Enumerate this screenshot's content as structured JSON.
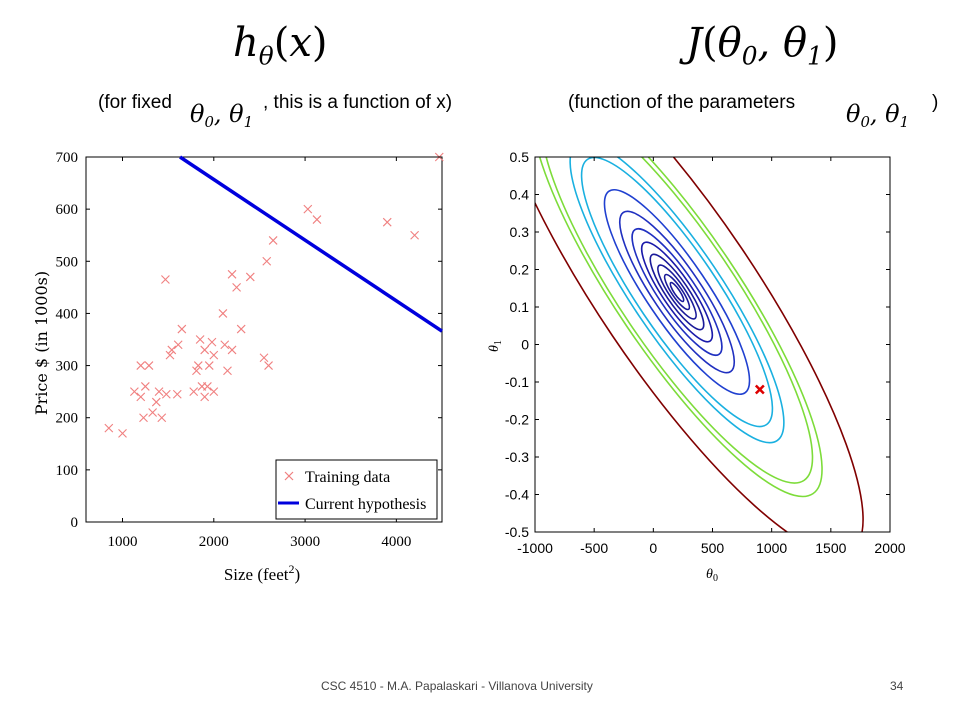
{
  "slide": {
    "left_heading": "h_θ(x)",
    "right_heading": "J(θ_0, θ_1)",
    "left_caption_a": "(for fixed",
    "left_caption_b": ", this is a function of x)",
    "right_caption_a": "(function of the parameters",
    "right_caption_b": ")",
    "params_symbol": "θ_0, θ_1",
    "footer_text": "CSC 4510 - M.A. Papalaskari - Villanova University",
    "page_number": "34"
  },
  "chart_data": [
    {
      "type": "scatter",
      "title": "",
      "xlabel": "Size (feet²)",
      "ylabel": "Price $ (in 1000s)",
      "xlim": [
        600,
        4500
      ],
      "ylim": [
        0,
        700
      ],
      "x_ticks": [
        "1000",
        "2000",
        "3000",
        "4000"
      ],
      "y_ticks": [
        "0",
        "100",
        "200",
        "300",
        "400",
        "500",
        "600",
        "700"
      ],
      "legend_position": "bottom-right",
      "series": [
        {
          "name": "Training data",
          "marker": "x",
          "color": "#f08080",
          "x": [
            850,
            1000,
            1130,
            1200,
            1200,
            1230,
            1250,
            1290,
            1330,
            1370,
            1400,
            1430,
            1470,
            1480,
            1520,
            1540,
            1600,
            1610,
            1650,
            1780,
            1810,
            1830,
            1850,
            1870,
            1900,
            1900,
            1930,
            1950,
            1980,
            2000,
            2000,
            2100,
            2120,
            2150,
            2200,
            2200,
            2250,
            2300,
            2400,
            2550,
            2580,
            2600,
            2650,
            3030,
            3130,
            3900,
            4200,
            4470
          ],
          "y": [
            180,
            170,
            250,
            300,
            240,
            200,
            260,
            300,
            210,
            230,
            250,
            200,
            465,
            245,
            320,
            330,
            245,
            340,
            370,
            250,
            290,
            300,
            350,
            260,
            330,
            240,
            260,
            300,
            345,
            250,
            320,
            400,
            340,
            290,
            475,
            330,
            450,
            370,
            470,
            315,
            500,
            300,
            540,
            600,
            580,
            575,
            550,
            700
          ]
        },
        {
          "name": "Current hypothesis",
          "type": "line",
          "color": "#0000dd",
          "x": [
            1630,
            4500
          ],
          "y": [
            700,
            366
          ]
        }
      ]
    },
    {
      "type": "contour",
      "title": "",
      "xlabel": "θ_0",
      "ylabel": "θ_1",
      "xlim": [
        -1000,
        2000
      ],
      "ylim": [
        -0.5,
        0.5
      ],
      "x_ticks": [
        "-1000",
        "-500",
        "0",
        "500",
        "1000",
        "1500",
        "2000"
      ],
      "y_ticks": [
        "0.5",
        "0.4",
        "0.3",
        "0.2",
        "0.1",
        "0",
        "-0.1",
        "-0.2",
        "-0.3",
        "-0.4",
        "-0.5"
      ],
      "center": [
        200,
        0.14
      ],
      "marked_point": {
        "x": 900,
        "y": -0.12,
        "color": "#dd0000"
      },
      "levels": [
        {
          "color": "#1a1a99",
          "scale": 0.07
        },
        {
          "color": "#1a1a99",
          "scale": 0.13
        },
        {
          "color": "#1a1a99",
          "scale": 0.2
        },
        {
          "color": "#1a1a99",
          "scale": 0.28
        },
        {
          "color": "#1a1aaa",
          "scale": 0.37
        },
        {
          "color": "#2030c0",
          "scale": 0.47
        },
        {
          "color": "#2030c0",
          "scale": 0.6
        },
        {
          "color": "#2040d0",
          "scale": 0.76
        },
        {
          "color": "#1ab0e0",
          "scale": 1.0
        },
        {
          "color": "#1ab0e0",
          "scale": 1.12
        },
        {
          "color": "#7ddc3a",
          "scale": 1.42
        },
        {
          "color": "#7ddc3a",
          "scale": 1.52
        },
        {
          "color": "#800000",
          "scale": 1.95
        }
      ]
    }
  ]
}
